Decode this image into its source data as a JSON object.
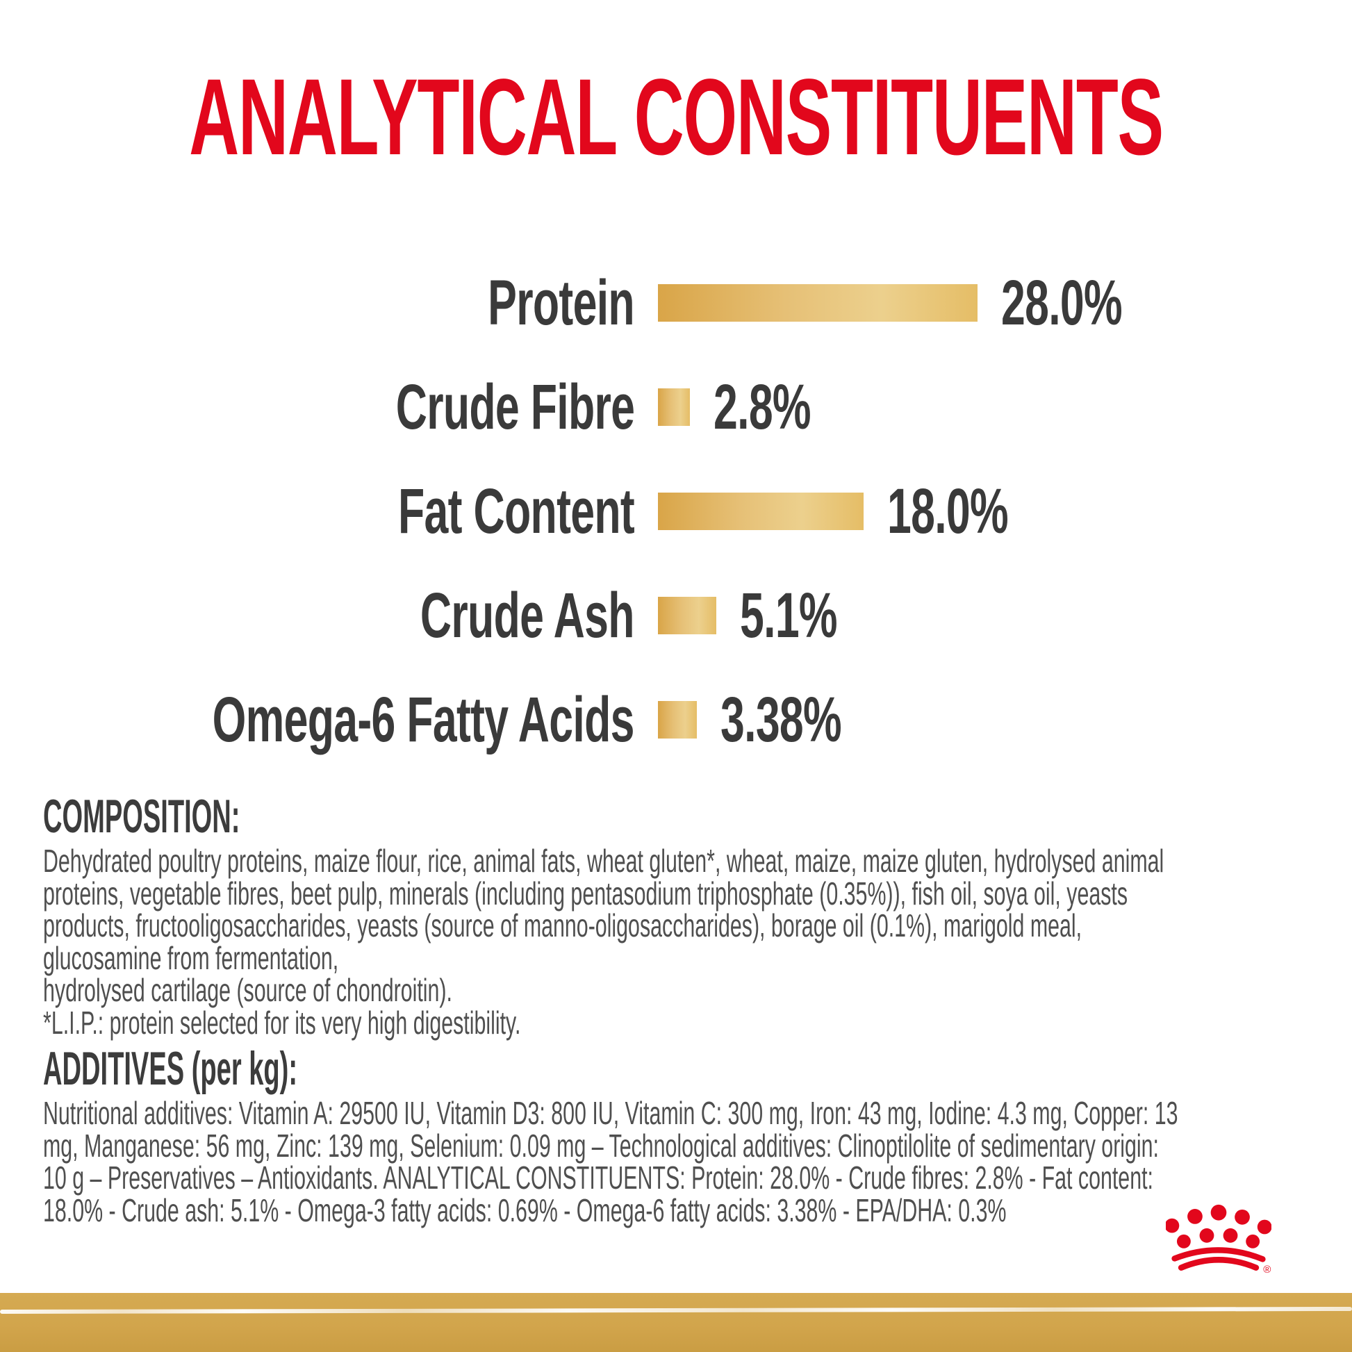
{
  "title": "ANALYTICAL CONSTITUENTS",
  "colors": {
    "brand_red": "#e2071c",
    "text_dark": "#3a3a3a",
    "body_text": "#4f4f4f",
    "bar_gold_dark": "#d9a548",
    "bar_gold_light": "#ecd08d",
    "footer_band_gold": "#d2a54c"
  },
  "chart_data": {
    "type": "bar",
    "orientation": "horizontal",
    "categories": [
      "Protein",
      "Crude Fibre",
      "Fat Content",
      "Crude Ash",
      "Omega-6 Fatty Acids"
    ],
    "values": [
      28.0,
      2.8,
      18.0,
      5.1,
      3.38
    ],
    "value_labels": [
      "28.0%",
      "2.8%",
      "18.0%",
      "5.1%",
      "3.38%"
    ],
    "unit": "%",
    "title": "ANALYTICAL CONSTITUENTS",
    "xlabel": "",
    "ylabel": "",
    "grid": false,
    "legend": false
  },
  "composition": {
    "heading": "COMPOSITION:",
    "lines": [
      "Dehydrated poultry proteins, maize flour, rice, animal fats, wheat gluten*, wheat, maize, maize gluten, hydrolysed animal",
      "proteins, vegetable fibres, beet pulp, minerals (including pentasodium triphosphate (0.35%)), fish oil, soya oil, yeasts",
      "products, fructooligosaccharides, yeasts (source of manno-oligosaccharides), borage oil (0.1%), marigold meal,",
      "glucosamine from fermentation,",
      "hydrolysed cartilage (source of chondroitin).",
      "*L.I.P.: protein selected for its very high digestibility."
    ]
  },
  "additives": {
    "heading": "ADDITIVES (per kg):",
    "lines": [
      "Nutritional additives: Vitamin A: 29500 IU, Vitamin D3: 800 IU, Vitamin C: 300 mg, Iron: 43 mg, Iodine: 4.3 mg, Copper: 13",
      "mg, Manganese: 56 mg, Zinc: 139 mg, Selenium: 0.09 mg – Technological additives: Clinoptilolite of sedimentary origin:",
      "10 g – Preservatives – Antioxidants. ANALYTICAL CONSTITUENTS: Protein: 28.0% - Crude fibres: 2.8% - Fat content:",
      "18.0% - Crude ash: 5.1% - Omega-3 fatty acids: 0.69% - Omega-6 fatty acids: 3.38% - EPA/DHA: 0.3%"
    ]
  },
  "footer": {
    "logo_name": "royal-canin-crown",
    "registered_mark": "®"
  }
}
